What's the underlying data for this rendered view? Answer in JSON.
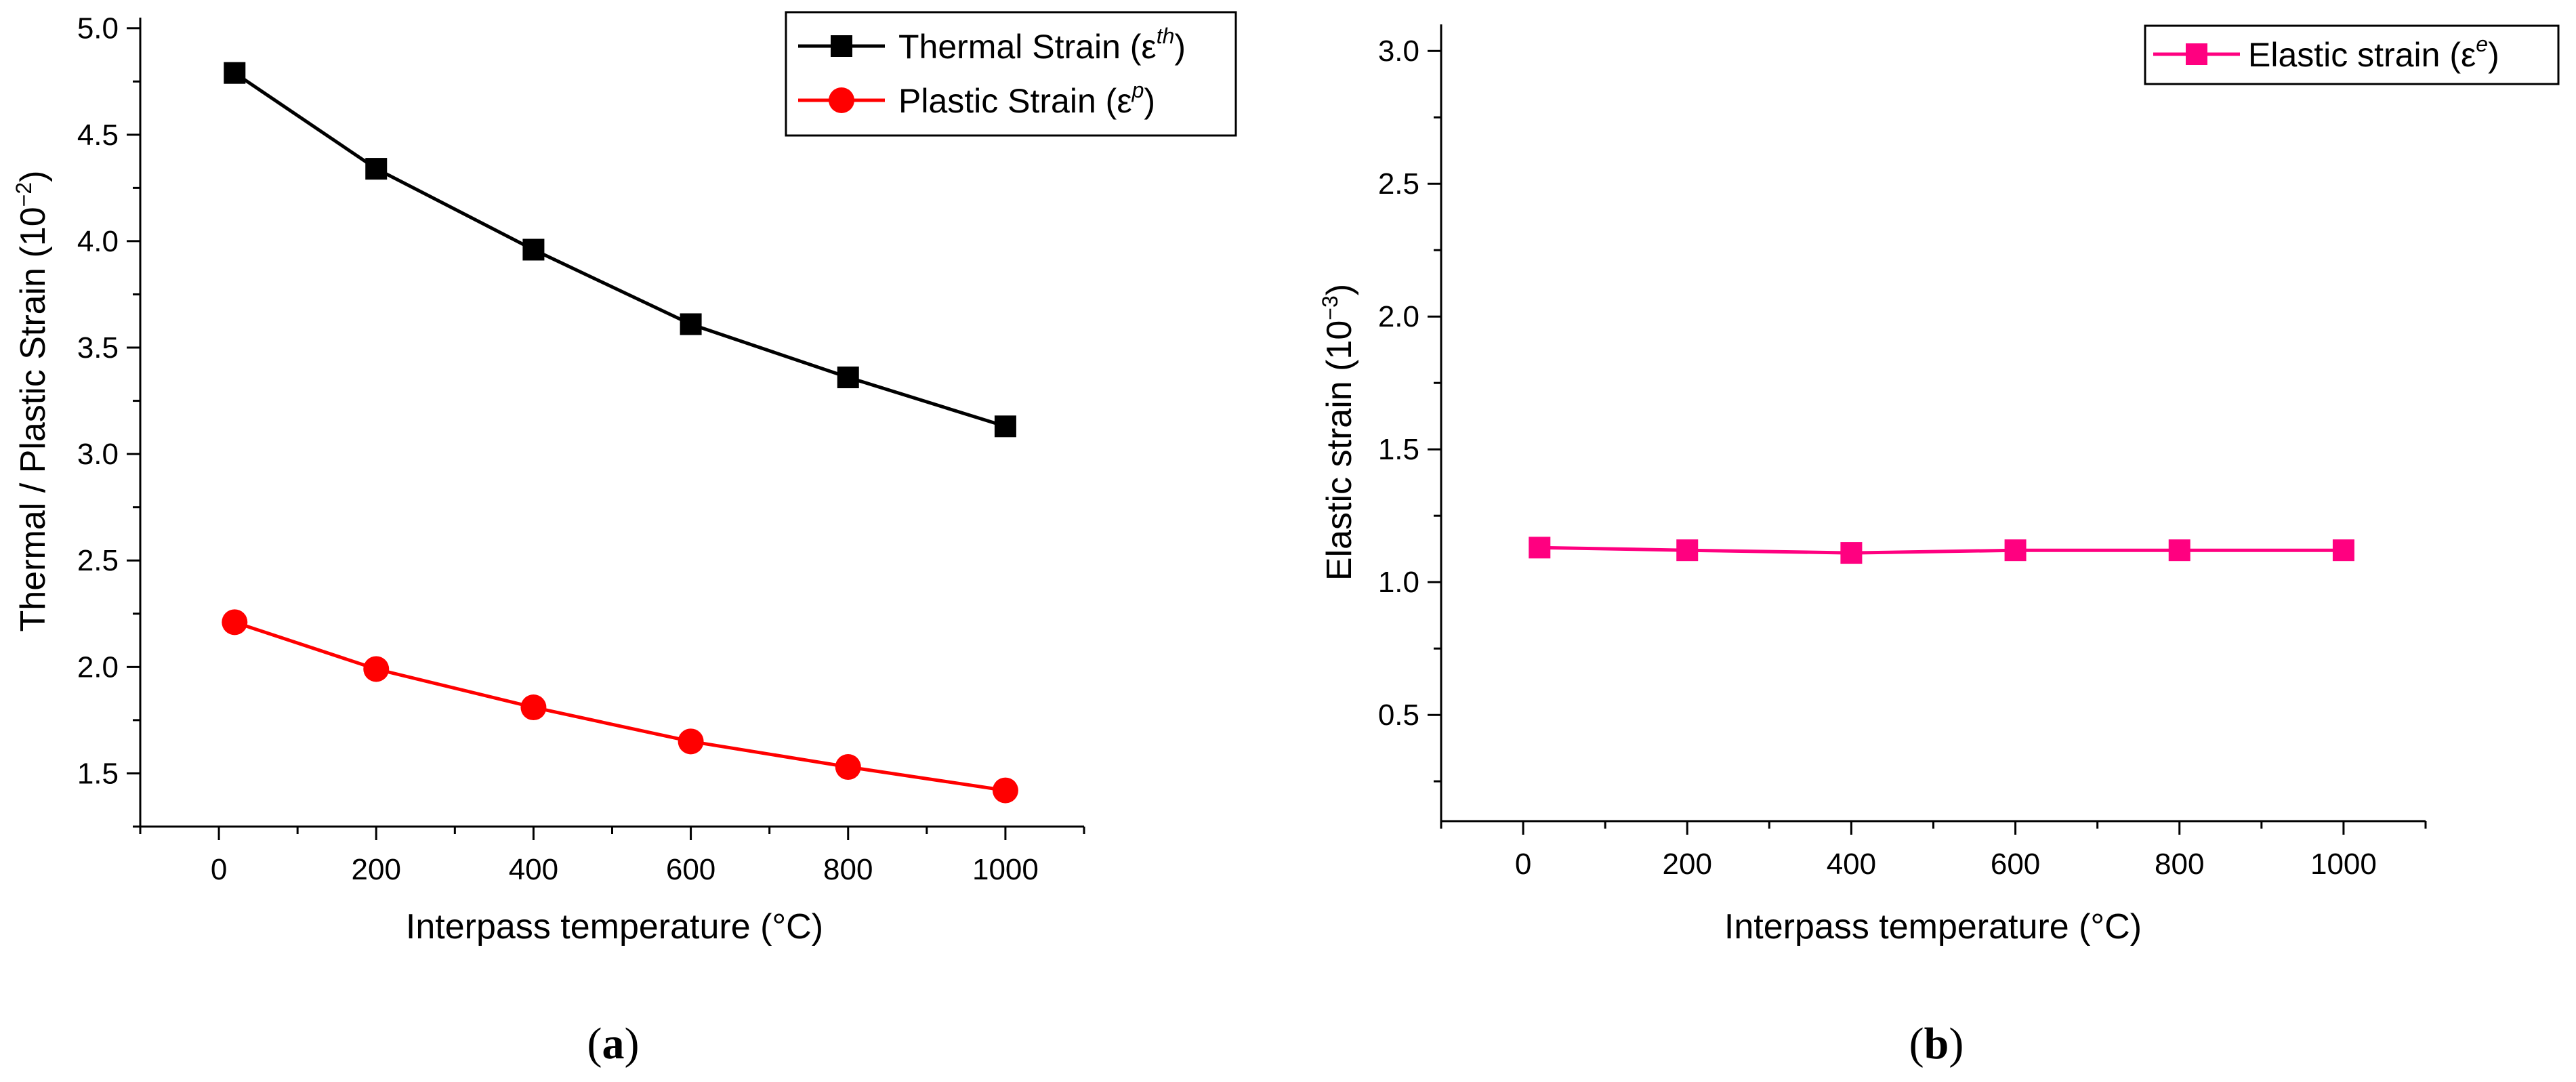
{
  "panels": [
    {
      "id": "a",
      "label_open": "(",
      "label_letter": "a",
      "label_close": ")",
      "ylabel_main": "Thermal / Plastic Strain (10",
      "ylabel_exp": "−2",
      "ylabel_close": ")",
      "xlabel": "Interpass temperature (°C)",
      "x_ticks": [
        "0",
        "200",
        "400",
        "600",
        "800",
        "1000"
      ],
      "y_ticks": [
        "1.5",
        "2.0",
        "2.5",
        "3.0",
        "3.5",
        "4.0",
        "4.5",
        "5.0"
      ],
      "legend": [
        {
          "name": "Thermal Strain (ε",
          "sup": "th",
          "close": ")"
        },
        {
          "name": "Plastic Strain (ε",
          "sup": "p",
          "close": ")"
        }
      ]
    },
    {
      "id": "b",
      "label_open": "(",
      "label_letter": "b",
      "label_close": ")",
      "ylabel_main": "Elastic strain (10",
      "ylabel_exp": "−3",
      "ylabel_close": ")",
      "xlabel": "Interpass temperature (°C)",
      "x_ticks": [
        "0",
        "200",
        "400",
        "600",
        "800",
        "1000"
      ],
      "y_ticks": [
        "0.5",
        "1.0",
        "1.5",
        "2.0",
        "2.5",
        "3.0"
      ],
      "legend": [
        {
          "name": "Elastic strain (ε",
          "sup": "e",
          "close": ")"
        }
      ]
    }
  ],
  "chart_data": [
    {
      "type": "line",
      "title": "",
      "xlabel": "Interpass temperature (°C)",
      "ylabel": "Thermal / Plastic Strain (10^-2)",
      "xlim": [
        -100,
        1100
      ],
      "ylim": [
        1.25,
        5.05
      ],
      "grid": false,
      "legend_position": "top-right",
      "series": [
        {
          "name": "Thermal Strain (ε^th)",
          "color": "#000000",
          "marker": "square",
          "x": [
            20,
            200,
            400,
            600,
            800,
            1000
          ],
          "values": [
            4.79,
            4.34,
            3.96,
            3.61,
            3.36,
            3.13
          ]
        },
        {
          "name": "Plastic Strain (ε^p)",
          "color": "#ff0000",
          "marker": "circle",
          "x": [
            20,
            200,
            400,
            600,
            800,
            1000
          ],
          "values": [
            2.21,
            1.99,
            1.81,
            1.65,
            1.53,
            1.42
          ]
        }
      ]
    },
    {
      "type": "line",
      "title": "",
      "xlabel": "Interpass temperature (°C)",
      "ylabel": "Elastic strain (10^-3)",
      "xlim": [
        -100,
        1100
      ],
      "ylim": [
        0.1,
        3.1
      ],
      "grid": false,
      "legend_position": "top-right",
      "series": [
        {
          "name": "Elastic strain (ε^e)",
          "color": "#ff0080",
          "marker": "square",
          "x": [
            20,
            200,
            400,
            600,
            800,
            1000
          ],
          "values": [
            1.13,
            1.12,
            1.11,
            1.12,
            1.12,
            1.12
          ]
        }
      ]
    }
  ]
}
